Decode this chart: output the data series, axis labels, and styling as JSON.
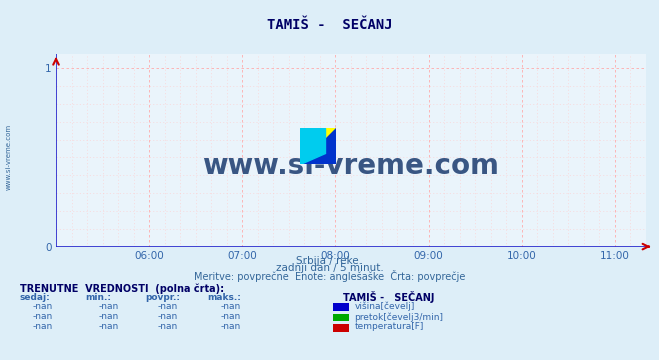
{
  "title": "TAMIŠ -  SEČANJ",
  "bg_color": "#ddeef8",
  "plot_bg_color": "#eaf4fb",
  "grid_color_major": "#ffaaaa",
  "grid_color_minor": "#ffcccc",
  "axis_color": "#2222cc",
  "xaxis_arrow_color": "#cc0000",
  "yaxis_arrow_color": "#cc0000",
  "xlim": [
    5.0,
    11.333
  ],
  "ylim": [
    0,
    1.08
  ],
  "yticks": [
    0,
    1
  ],
  "xtick_labels": [
    "06:00",
    "07:00",
    "08:00",
    "09:00",
    "10:00",
    "11:00"
  ],
  "xtick_positions": [
    6,
    7,
    8,
    9,
    10,
    11
  ],
  "tick_color": "#3366aa",
  "title_color": "#000066",
  "watermark": "www.si-vreme.com",
  "watermark_color": "#1a3a6e",
  "subtitle_line1": "Srbija / reke.",
  "subtitle_line2": "zadnji dan / 5 minut.",
  "subtitle_line3": "Meritve: povprečne  Enote: anglešaške  Črta: povprečje",
  "subtitle_color": "#336699",
  "left_label": "www.si-vreme.com",
  "left_label_color": "#336699",
  "table_header": "TRENUTNE  VREDNOSTI  (polna črta):",
  "table_col_headers": [
    "sedaj:",
    "min.:",
    "povpr.:",
    "maks.:"
  ],
  "table_station": "TAMIŠ -   SEČANJ",
  "table_rows": [
    {
      "values": [
        "-nan",
        "-nan",
        "-nan",
        "-nan"
      ],
      "color": "#0000cc",
      "label": "višina[čevelj]"
    },
    {
      "values": [
        "-nan",
        "-nan",
        "-nan",
        "-nan"
      ],
      "color": "#00aa00",
      "label": "pretok[čevelj3/min]"
    },
    {
      "values": [
        "-nan",
        "-nan",
        "-nan",
        "-nan"
      ],
      "color": "#cc0000",
      "label": "temperatura[F]"
    }
  ]
}
